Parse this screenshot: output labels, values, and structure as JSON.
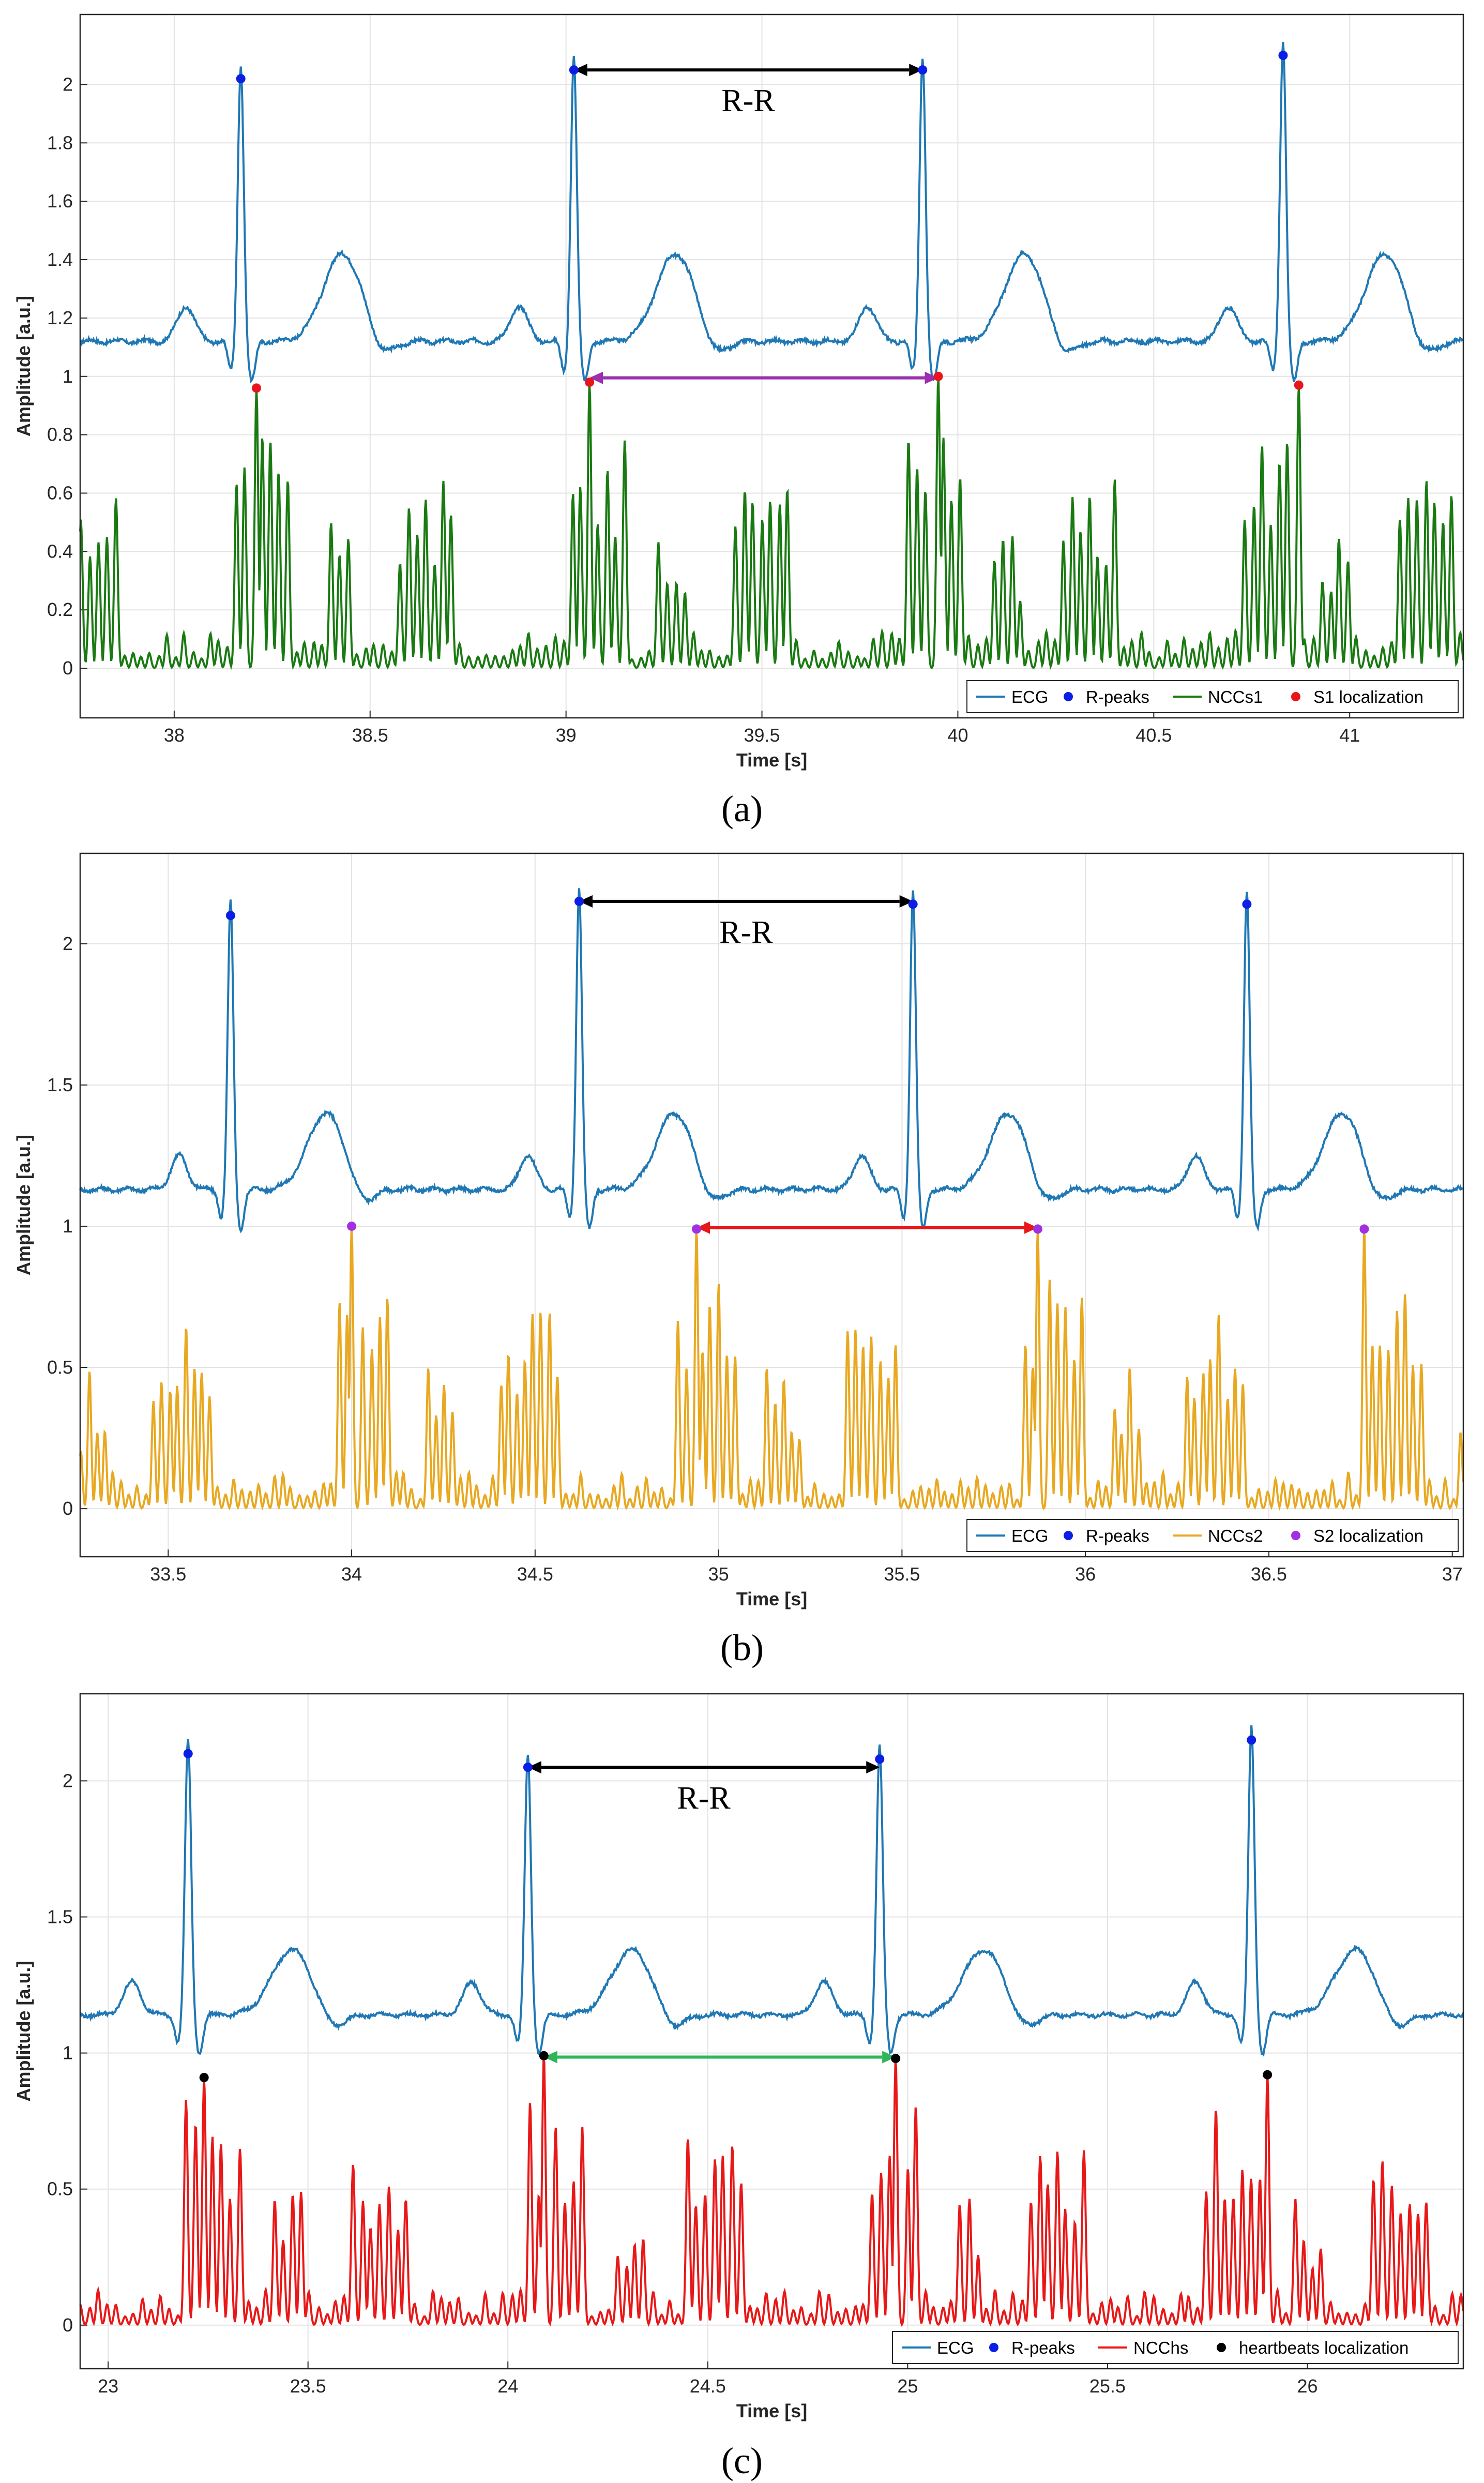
{
  "chart_data": [
    {
      "type": "line",
      "panel_label": "a",
      "xlabel": "Time [s]",
      "ylabel": "Amplitude [a.u.]",
      "xlim": [
        37.76,
        41.29
      ],
      "ylim": [
        -0.17,
        2.24
      ],
      "xticks": [
        38,
        38.5,
        39,
        39.5,
        40,
        40.5,
        41
      ],
      "xtick_labels": [
        "38",
        "38.5",
        "39",
        "39.5",
        "40",
        "40.5",
        "41"
      ],
      "yticks": [
        0,
        0.2,
        0.4,
        0.6,
        0.8,
        1,
        1.2,
        1.4,
        1.6,
        1.8,
        2
      ],
      "ytick_labels": [
        "0",
        "0.2",
        "0.4",
        "0.6",
        "0.8",
        "1",
        "1.2",
        "1.4",
        "1.6",
        "1.8",
        "2"
      ],
      "grid": true,
      "legend": [
        "ECG",
        "R-peaks",
        "NCCs1",
        "S1 localization"
      ],
      "legend_position": "bottom-right",
      "ecg": {
        "baseline": 1.12,
        "r_times": [
          38.17,
          39.02,
          39.91,
          40.83
        ],
        "r_heights": [
          2.02,
          2.05,
          2.05,
          2.1
        ],
        "t_height": 1.42
      },
      "ncc": {
        "name": "NCCs1",
        "color": "#1a7a12",
        "s_times": [
          38.21,
          39.06,
          39.95,
          40.87
        ],
        "s_values": [
          0.96,
          0.98,
          1.0,
          0.97
        ]
      },
      "colors": {
        "ecg": "#1f78b4",
        "rpeak": "#0a1ee6",
        "marker": "#e8161a"
      },
      "annotations": [
        {
          "label": "R-R",
          "from": 39.02,
          "to": 39.91,
          "y": 2.05,
          "color": "#000000"
        },
        {
          "label": "",
          "from": 39.06,
          "to": 39.95,
          "y": 0.995,
          "color": "#9b2fae"
        }
      ]
    },
    {
      "type": "line",
      "panel_label": "b",
      "xlabel": "Time [s]",
      "ylabel": "Amplitude [a.u.]",
      "xlim": [
        33.26,
        37.03
      ],
      "ylim": [
        -0.17,
        2.32
      ],
      "xticks": [
        33.5,
        34,
        34.5,
        35,
        35.5,
        36,
        36.5,
        37
      ],
      "xtick_labels": [
        "33.5",
        "34",
        "34.5",
        "35",
        "35.5",
        "36",
        "36.5",
        "37"
      ],
      "yticks": [
        0,
        0.5,
        1,
        1.5,
        2
      ],
      "ytick_labels": [
        "0",
        "0.5",
        "1",
        "1.5",
        "2"
      ],
      "grid": true,
      "legend": [
        "ECG",
        "R-peaks",
        "NCCs2",
        "S2 localization"
      ],
      "legend_position": "bottom-right",
      "ecg": {
        "baseline": 1.13,
        "r_times": [
          33.67,
          34.62,
          35.53,
          36.44
        ],
        "r_heights": [
          2.1,
          2.15,
          2.14,
          2.14
        ],
        "t_height": 1.4
      },
      "ncc": {
        "name": "NCCs2",
        "color": "#e8a820",
        "s_times": [
          34.0,
          34.94,
          35.87,
          36.76
        ],
        "s_values": [
          1.0,
          0.99,
          0.99,
          0.99
        ]
      },
      "colors": {
        "ecg": "#1f78b4",
        "rpeak": "#0a1ee6",
        "marker": "#a030e0"
      },
      "annotations": [
        {
          "label": "R-R",
          "from": 34.62,
          "to": 35.53,
          "y": 2.15,
          "color": "#000000"
        },
        {
          "label": "",
          "from": 34.94,
          "to": 35.87,
          "y": 0.995,
          "color": "#e81818"
        }
      ]
    },
    {
      "type": "line",
      "panel_label": "c",
      "xlabel": "Time [s]",
      "ylabel": "Amplitude [a.u.]",
      "xlim": [
        22.93,
        26.39
      ],
      "ylim": [
        -0.16,
        2.32
      ],
      "xticks": [
        23,
        23.5,
        24,
        24.5,
        25,
        25.5,
        26
      ],
      "xtick_labels": [
        "23",
        "23.5",
        "24",
        "24.5",
        "25",
        "25.5",
        "26"
      ],
      "yticks": [
        0,
        0.5,
        1,
        1.5,
        2
      ],
      "ytick_labels": [
        "0",
        "0.5",
        "1",
        "1.5",
        "2"
      ],
      "grid": true,
      "legend": [
        "ECG",
        "R-peaks",
        "NCChs",
        "heartbeats localization"
      ],
      "legend_position": "bottom-right",
      "ecg": {
        "baseline": 1.14,
        "r_times": [
          23.2,
          24.05,
          24.93,
          25.86
        ],
        "r_heights": [
          2.1,
          2.05,
          2.08,
          2.15
        ],
        "t_height": 1.38
      },
      "ncc": {
        "name": "NCChs",
        "color": "#e81818",
        "s_times": [
          23.24,
          24.09,
          24.97,
          25.9
        ],
        "s_values": [
          0.91,
          0.99,
          0.98,
          0.92
        ]
      },
      "colors": {
        "ecg": "#1f78b4",
        "rpeak": "#0a1ee6",
        "marker": "#000000"
      },
      "annotations": [
        {
          "label": "R-R",
          "from": 24.05,
          "to": 24.93,
          "y": 2.05,
          "color": "#000000"
        },
        {
          "label": "",
          "from": 24.09,
          "to": 24.97,
          "y": 0.985,
          "color": "#2db558"
        }
      ]
    }
  ],
  "captions": [
    "(a)",
    "(b)",
    "(c)"
  ]
}
